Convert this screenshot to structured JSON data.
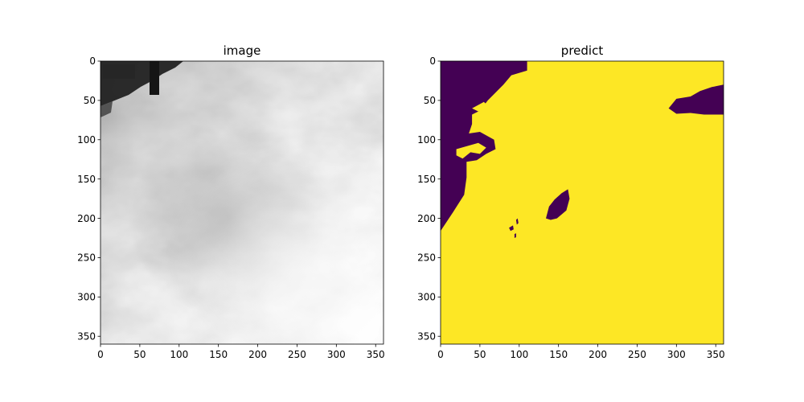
{
  "chart_data": [
    {
      "type": "heatmap",
      "title": "image",
      "xlabel": "",
      "ylabel": "",
      "xlim": [
        0,
        360
      ],
      "ylim": [
        360,
        0
      ],
      "xticks": [
        0,
        50,
        100,
        150,
        200,
        250,
        300,
        350
      ],
      "yticks": [
        0,
        50,
        100,
        150,
        200,
        250,
        300,
        350
      ],
      "grid": false,
      "legend": "none",
      "content": "grayscale fisheye sky photograph of clouds with a dark rooftop/mast obstruction in the top-left corner"
    },
    {
      "type": "heatmap",
      "title": "predict",
      "xlabel": "",
      "ylabel": "",
      "xlim": [
        0,
        360
      ],
      "ylim": [
        360,
        0
      ],
      "xticks": [
        0,
        50,
        100,
        150,
        200,
        250,
        300,
        350
      ],
      "yticks": [
        0,
        50,
        100,
        150,
        200,
        250,
        300,
        350
      ],
      "grid": false,
      "legend": "none",
      "colormap": "viridis",
      "class_colors": {
        "cloud": "#fde725",
        "background": "#440154"
      },
      "regions": {
        "background_upper_left": [
          [
            0,
            0
          ],
          [
            110,
            0
          ],
          [
            110,
            12
          ],
          [
            90,
            18
          ],
          [
            80,
            30
          ],
          [
            60,
            50
          ],
          [
            50,
            63
          ],
          [
            40,
            68
          ],
          [
            40,
            80
          ],
          [
            36,
            92
          ],
          [
            50,
            90
          ],
          [
            68,
            100
          ],
          [
            70,
            112
          ],
          [
            58,
            118
          ],
          [
            46,
            126
          ],
          [
            33,
            128
          ],
          [
            33,
            148
          ],
          [
            30,
            170
          ],
          [
            16,
            192
          ],
          [
            0,
            216
          ]
        ],
        "background_right_blob": [
          [
            290,
            60
          ],
          [
            300,
            48
          ],
          [
            318,
            45
          ],
          [
            330,
            38
          ],
          [
            345,
            33
          ],
          [
            360,
            30
          ],
          [
            360,
            68
          ],
          [
            335,
            68
          ],
          [
            318,
            66
          ],
          [
            300,
            67
          ]
        ],
        "background_center_blob": [
          [
            134,
            200
          ],
          [
            138,
            185
          ],
          [
            145,
            176
          ],
          [
            154,
            168
          ],
          [
            162,
            163
          ],
          [
            164,
            175
          ],
          [
            160,
            190
          ],
          [
            148,
            200
          ],
          [
            140,
            202
          ]
        ],
        "background_small_specks": [
          [
            [
              87,
              212
            ],
            [
              92,
              209
            ],
            [
              93,
              214
            ],
            [
              89,
              216
            ]
          ],
          [
            [
              96,
              202
            ],
            [
              98,
              200
            ],
            [
              99,
              206
            ],
            [
              97,
              208
            ]
          ],
          [
            [
              94,
              220
            ],
            [
              96,
              219
            ],
            [
              96,
              224
            ],
            [
              94,
              225
            ]
          ]
        ],
        "cloud_inlet_patches": [
          [
            [
              20,
              112
            ],
            [
              34,
              108
            ],
            [
              48,
              104
            ],
            [
              58,
              110
            ],
            [
              50,
              118
            ],
            [
              38,
              116
            ],
            [
              28,
              124
            ],
            [
              20,
              120
            ]
          ],
          [
            [
              40,
              60
            ],
            [
              55,
              52
            ],
            [
              62,
              58
            ],
            [
              48,
              64
            ]
          ]
        ]
      }
    }
  ]
}
